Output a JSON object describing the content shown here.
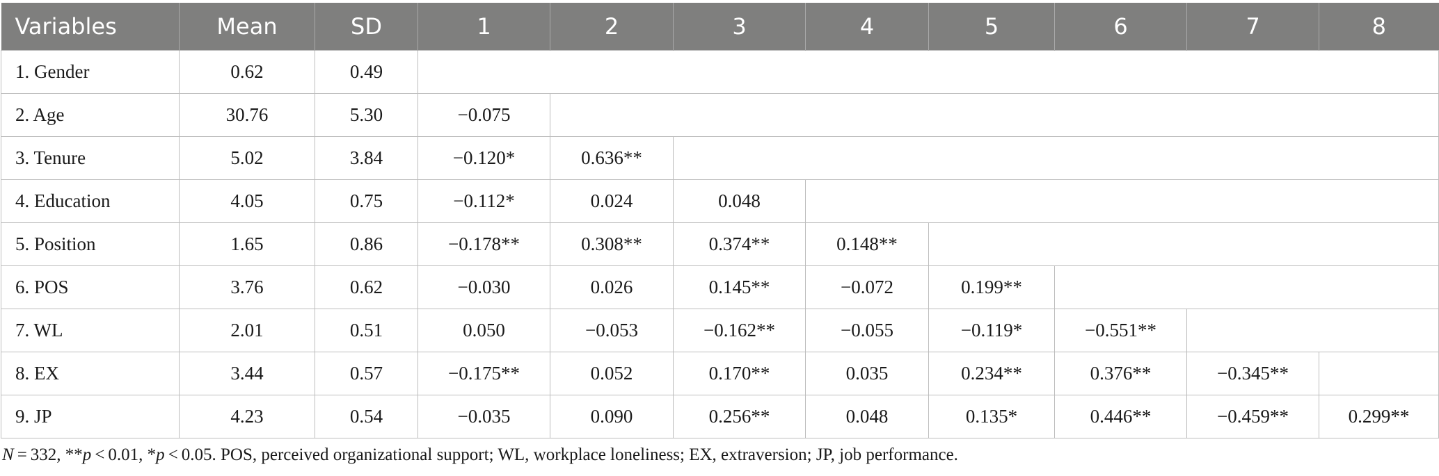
{
  "table": {
    "headers": [
      "Variables",
      "Mean",
      "SD",
      "1",
      "2",
      "3",
      "4",
      "5",
      "6",
      "7",
      "8"
    ],
    "rows": [
      {
        "variable": "1. Gender",
        "mean": "0.62",
        "sd": "0.49",
        "values": []
      },
      {
        "variable": "2. Age",
        "mean": "30.76",
        "sd": "5.30",
        "values": [
          "−0.075"
        ]
      },
      {
        "variable": "3. Tenure",
        "mean": "5.02",
        "sd": "3.84",
        "values": [
          "−0.120*",
          "0.636**"
        ]
      },
      {
        "variable": "4. Education",
        "mean": "4.05",
        "sd": "0.75",
        "values": [
          "−0.112*",
          "0.024",
          "0.048"
        ]
      },
      {
        "variable": "5. Position",
        "mean": "1.65",
        "sd": "0.86",
        "values": [
          "−0.178**",
          "0.308**",
          "0.374**",
          "0.148**"
        ]
      },
      {
        "variable": "6. POS",
        "mean": "3.76",
        "sd": "0.62",
        "values": [
          "−0.030",
          "0.026",
          "0.145**",
          "−0.072",
          "0.199**"
        ]
      },
      {
        "variable": "7. WL",
        "mean": "2.01",
        "sd": "0.51",
        "values": [
          "0.050",
          "−0.053",
          "−0.162**",
          "−0.055",
          "−0.119*",
          "−0.551**"
        ]
      },
      {
        "variable": "8. EX",
        "mean": "3.44",
        "sd": "0.57",
        "values": [
          "−0.175**",
          "0.052",
          "0.170**",
          "0.035",
          "0.234**",
          "0.376**",
          "−0.345**"
        ]
      },
      {
        "variable": "9. JP",
        "mean": "4.23",
        "sd": "0.54",
        "values": [
          "−0.035",
          "0.090",
          "0.256**",
          "0.048",
          "0.135*",
          "0.446**",
          "−0.459**",
          "0.299**"
        ]
      }
    ]
  },
  "note": {
    "n_label": "N",
    "n_rest": " = 332, **",
    "p1_label": "p",
    "p1_rest": " < 0.01, *",
    "p2_label": "p",
    "p2_rest": " < 0.05. POS, perceived organizational support; WL, workplace loneliness; EX, extraversion; JP, job performance."
  }
}
